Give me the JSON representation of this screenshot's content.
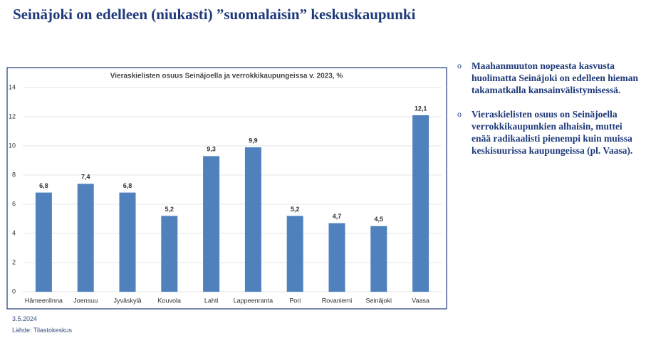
{
  "title": "Seinäjoki on edelleen (niukasti) ”suomalaisin” keskuskaupunki",
  "bullets": [
    "Maahanmuuton nopeasta kasvusta huolimatta Seinäjoki on edelleen hieman takamatkalla kansainvälistymisessä.",
    "Vieraskielisten osuus on Seinäjoella verrokkikaupunkien alhaisin, muttei enää radikaalisti pienempi kuin muissa keskisuurissa kaupungeissa (pl. Vaasa)."
  ],
  "date": "3.5.2024",
  "source": "Lähde: Tilastokeskus",
  "chart_data": {
    "type": "bar",
    "title": "Vieraskielisten osuus Seinäjoella ja verrokkikaupungeissa v. 2023, %",
    "categories": [
      "Hämeenlinna",
      "Joensuu",
      "Jyväskylä",
      "Kouvola",
      "Lahti",
      "Lappeenranta",
      "Pori",
      "Rovaniemi",
      "Seinäjoki",
      "Vaasa"
    ],
    "values": [
      6.8,
      7.4,
      6.8,
      5.2,
      9.3,
      9.9,
      5.2,
      4.7,
      4.5,
      12.1
    ],
    "value_labels": [
      "6,8",
      "7,4",
      "6,8",
      "5,2",
      "9,3",
      "9,9",
      "5,2",
      "4,7",
      "4,5",
      "12,1"
    ],
    "color": "#4f81bd",
    "ylim": [
      0,
      14
    ],
    "yticks": [
      0,
      2,
      4,
      6,
      8,
      10,
      12,
      14
    ],
    "grid": true
  }
}
